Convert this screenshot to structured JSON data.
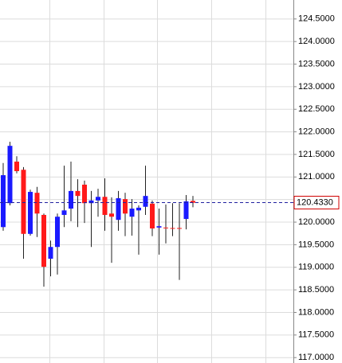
{
  "chart_data": {
    "type": "candlestick",
    "up_color": "#1a1aff",
    "down_color": "#ff1a1a",
    "grid": true,
    "ylim": [
      116.88,
      124.92
    ],
    "yticks": [
      {
        "value": 124.5,
        "label": "124.5000"
      },
      {
        "value": 124.0,
        "label": "124.0000"
      },
      {
        "value": 123.5,
        "label": "123.5000"
      },
      {
        "value": 123.0,
        "label": "123.0000"
      },
      {
        "value": 122.5,
        "label": "122.5000"
      },
      {
        "value": 122.0,
        "label": "122.0000"
      },
      {
        "value": 121.5,
        "label": "121.5000"
      },
      {
        "value": 121.0,
        "label": "121.0000"
      },
      {
        "value": 120.5,
        "label": "120.5000"
      },
      {
        "value": 120.0,
        "label": "120.0000"
      },
      {
        "value": 119.5,
        "label": "119.5000"
      },
      {
        "value": 119.0,
        "label": "119.0000"
      },
      {
        "value": 118.5,
        "label": "118.5000"
      },
      {
        "value": 118.0,
        "label": "118.0000"
      },
      {
        "value": 117.5,
        "label": "117.5000"
      },
      {
        "value": 117.0,
        "label": "117.0000"
      }
    ],
    "last": {
      "value": 120.433,
      "label": "120.4330"
    },
    "candles": [
      {
        "open": 119.89,
        "high": 121.31,
        "low": 119.81,
        "close": 121.04
      },
      {
        "open": 120.42,
        "high": 121.78,
        "low": 120.37,
        "close": 121.69
      },
      {
        "open": 121.34,
        "high": 121.46,
        "low": 121.08,
        "close": 121.13
      },
      {
        "open": 121.16,
        "high": 121.22,
        "low": 119.19,
        "close": 119.74
      },
      {
        "open": 119.74,
        "high": 120.72,
        "low": 119.7,
        "close": 120.67
      },
      {
        "open": 120.65,
        "high": 120.78,
        "low": 119.67,
        "close": 120.19
      },
      {
        "open": 120.16,
        "high": 120.19,
        "low": 118.57,
        "close": 119.01
      },
      {
        "open": 119.19,
        "high": 119.59,
        "low": 118.8,
        "close": 119.45
      },
      {
        "open": 119.45,
        "high": 120.19,
        "low": 118.84,
        "close": 120.12
      },
      {
        "open": 120.16,
        "high": 121.25,
        "low": 119.89,
        "close": 120.26
      },
      {
        "open": 120.3,
        "high": 121.34,
        "low": 120.02,
        "close": 120.69
      },
      {
        "open": 120.69,
        "high": 120.95,
        "low": 119.89,
        "close": 120.58
      },
      {
        "open": 120.83,
        "high": 120.92,
        "low": 119.98,
        "close": 120.42
      },
      {
        "open": 120.42,
        "high": 120.69,
        "low": 119.45,
        "close": 120.48
      },
      {
        "open": 120.48,
        "high": 120.74,
        "low": 120.12,
        "close": 120.56
      },
      {
        "open": 120.56,
        "high": 120.97,
        "low": 119.81,
        "close": 120.16
      },
      {
        "open": 120.19,
        "high": 120.55,
        "low": 119.1,
        "close": 120.12
      },
      {
        "open": 120.05,
        "high": 120.69,
        "low": 119.81,
        "close": 120.53
      },
      {
        "open": 120.51,
        "high": 120.65,
        "low": 119.69,
        "close": 120.19
      },
      {
        "open": 120.12,
        "high": 120.51,
        "low": 119.7,
        "close": 120.3
      },
      {
        "open": 120.26,
        "high": 120.37,
        "low": 119.28,
        "close": 120.32
      },
      {
        "open": 120.34,
        "high": 121.25,
        "low": 120.16,
        "close": 120.58
      },
      {
        "open": 120.41,
        "high": 120.48,
        "low": 119.69,
        "close": 119.86
      },
      {
        "open": 119.88,
        "high": 120.3,
        "low": 119.28,
        "close": 119.91
      },
      {
        "open": 119.88,
        "high": 120.39,
        "low": 119.53,
        "close": 119.87
      },
      {
        "open": 119.87,
        "high": 120.42,
        "low": 119.69,
        "close": 119.86
      },
      {
        "open": 119.87,
        "high": 120.42,
        "low": 118.72,
        "close": 119.86
      },
      {
        "open": 120.07,
        "high": 120.6,
        "low": 119.84,
        "close": 120.46
      },
      {
        "open": 120.47,
        "high": 120.58,
        "low": 120.33,
        "close": 120.43
      }
    ]
  }
}
